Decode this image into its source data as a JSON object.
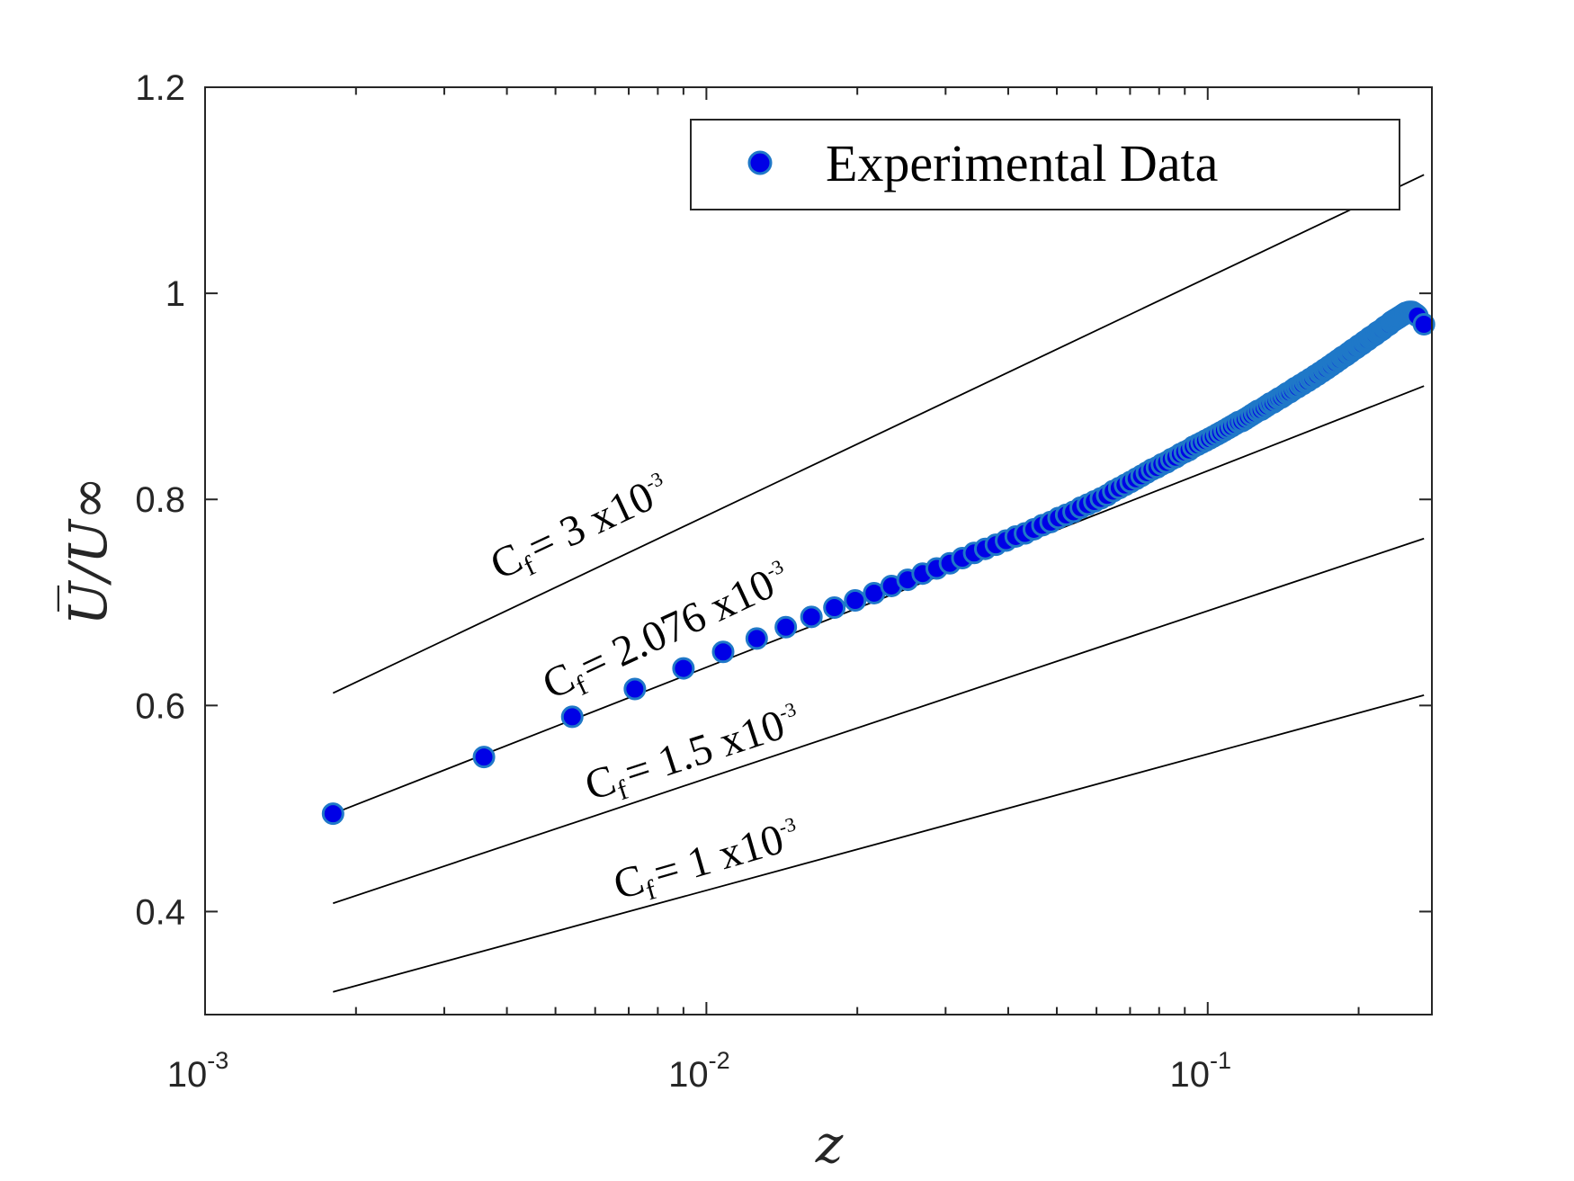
{
  "chart_data": {
    "type": "scatter",
    "xlabel": "z",
    "ylabel": "U̅/U∞",
    "xscale": "log",
    "xlim": [
      0.001,
      0.28
    ],
    "ylim": [
      0.3,
      1.2
    ],
    "x_ticks": [
      {
        "value": 0.001,
        "base": "10",
        "exp": "-3"
      },
      {
        "value": 0.01,
        "base": "10",
        "exp": "-2"
      },
      {
        "value": 0.1,
        "base": "10",
        "exp": "-1"
      }
    ],
    "y_ticks": [
      {
        "value": 0.4,
        "label": "0.4"
      },
      {
        "value": 0.6,
        "label": "0.6"
      },
      {
        "value": 0.8,
        "label": "0.8"
      },
      {
        "value": 1.0,
        "label": "1"
      },
      {
        "value": 1.2,
        "label": "1.2"
      }
    ],
    "grid": false,
    "legend": {
      "position": "top-right",
      "entries": [
        "Experimental Data"
      ]
    },
    "series": [
      {
        "name": "Experimental Data",
        "marker": "circle",
        "color": "#0000e6",
        "edge_color": "#1f78c8",
        "x": [
          0.0018,
          0.0036,
          0.0054,
          0.0072,
          0.009,
          0.0108,
          0.0126,
          0.0144,
          0.0162,
          0.018,
          0.0198,
          0.0216,
          0.0234,
          0.0252,
          0.027,
          0.0288,
          0.0306,
          0.0324,
          0.0342,
          0.036,
          0.0378,
          0.0396,
          0.0414,
          0.0432,
          0.045,
          0.0468,
          0.0486,
          0.0504,
          0.0522,
          0.054,
          0.0558,
          0.0576,
          0.0594,
          0.0612,
          0.063,
          0.0648,
          0.0666,
          0.0684,
          0.0702,
          0.072,
          0.0738,
          0.0756,
          0.0774,
          0.0792,
          0.081,
          0.0828,
          0.0846,
          0.0864,
          0.0882,
          0.09,
          0.0918,
          0.0936,
          0.0954,
          0.0972,
          0.099,
          0.1008,
          0.1026,
          0.1044,
          0.1062,
          0.108,
          0.1098,
          0.1116,
          0.1134,
          0.1152,
          0.117,
          0.1188,
          0.1206,
          0.1224,
          0.1242,
          0.126,
          0.1278,
          0.1296,
          0.1314,
          0.1332,
          0.135,
          0.1368,
          0.1386,
          0.1404,
          0.1422,
          0.144,
          0.1458,
          0.1476,
          0.1494,
          0.1512,
          0.153,
          0.1548,
          0.1566,
          0.1584,
          0.1602,
          0.162,
          0.1638,
          0.1656,
          0.1674,
          0.1692,
          0.171,
          0.1728,
          0.1746,
          0.1764,
          0.1782,
          0.18,
          0.1818,
          0.1836,
          0.1854,
          0.1872,
          0.189,
          0.1908,
          0.1926,
          0.1944,
          0.1962,
          0.198,
          0.1998,
          0.2016,
          0.2034,
          0.2052,
          0.207,
          0.2088,
          0.2106,
          0.2124,
          0.2142,
          0.216,
          0.2178,
          0.2196,
          0.2214,
          0.2232,
          0.225,
          0.2268,
          0.2286,
          0.2304,
          0.2322,
          0.234,
          0.2358,
          0.2376,
          0.2394,
          0.2412,
          0.243,
          0.2448,
          0.2466,
          0.2484,
          0.2502,
          0.252,
          0.2538,
          0.2556,
          0.2574,
          0.2592,
          0.261,
          0.262,
          0.27
        ],
        "y": [
          0.495,
          0.55,
          0.589,
          0.616,
          0.636,
          0.652,
          0.665,
          0.676,
          0.686,
          0.695,
          0.702,
          0.709,
          0.716,
          0.722,
          0.728,
          0.733,
          0.738,
          0.743,
          0.748,
          0.752,
          0.756,
          0.76,
          0.764,
          0.767,
          0.771,
          0.775,
          0.778,
          0.782,
          0.785,
          0.788,
          0.792,
          0.795,
          0.798,
          0.801,
          0.804,
          0.808,
          0.811,
          0.814,
          0.817,
          0.82,
          0.823,
          0.826,
          0.829,
          0.831,
          0.834,
          0.836,
          0.839,
          0.841,
          0.844,
          0.846,
          0.848,
          0.851,
          0.853,
          0.855,
          0.857,
          0.859,
          0.861,
          0.863,
          0.865,
          0.867,
          0.869,
          0.871,
          0.873,
          0.875,
          0.876,
          0.878,
          0.88,
          0.882,
          0.884,
          0.886,
          0.887,
          0.889,
          0.891,
          0.893,
          0.894,
          0.896,
          0.898,
          0.899,
          0.901,
          0.903,
          0.904,
          0.906,
          0.908,
          0.909,
          0.911,
          0.912,
          0.914,
          0.915,
          0.917,
          0.918,
          0.92,
          0.921,
          0.923,
          0.924,
          0.926,
          0.927,
          0.929,
          0.93,
          0.932,
          0.933,
          0.935,
          0.936,
          0.938,
          0.939,
          0.94,
          0.942,
          0.943,
          0.945,
          0.946,
          0.947,
          0.949,
          0.95,
          0.951,
          0.953,
          0.954,
          0.955,
          0.957,
          0.958,
          0.959,
          0.96,
          0.962,
          0.963,
          0.964,
          0.965,
          0.967,
          0.968,
          0.969,
          0.97,
          0.972,
          0.973,
          0.974,
          0.975,
          0.976,
          0.977,
          0.978,
          0.979,
          0.98,
          0.981,
          0.981,
          0.982,
          0.982,
          0.982,
          0.981,
          0.98,
          0.979,
          0.978,
          0.97
        ]
      }
    ],
    "reference_lines": [
      {
        "label": {
          "prefix": "C",
          "sub": "f",
          "text": "= 3 x10",
          "sup": "-3"
        },
        "x": [
          0.0018,
          0.27
        ],
        "y": [
          0.612,
          1.115
        ]
      },
      {
        "label": {
          "prefix": "C",
          "sub": "f",
          "text": "= 2.076 x10",
          "sup": "-3"
        },
        "x": [
          0.0018,
          0.27
        ],
        "y": [
          0.495,
          0.91
        ]
      },
      {
        "label": {
          "prefix": "C",
          "sub": "f",
          "text": "= 1.5 x10",
          "sup": "-3"
        },
        "x": [
          0.0018,
          0.27
        ],
        "y": [
          0.408,
          0.762
        ]
      },
      {
        "label": {
          "prefix": "C",
          "sub": "f",
          "text": "= 1 x10",
          "sup": "-3"
        },
        "x": [
          0.0018,
          0.27
        ],
        "y": [
          0.322,
          0.61
        ]
      }
    ]
  }
}
